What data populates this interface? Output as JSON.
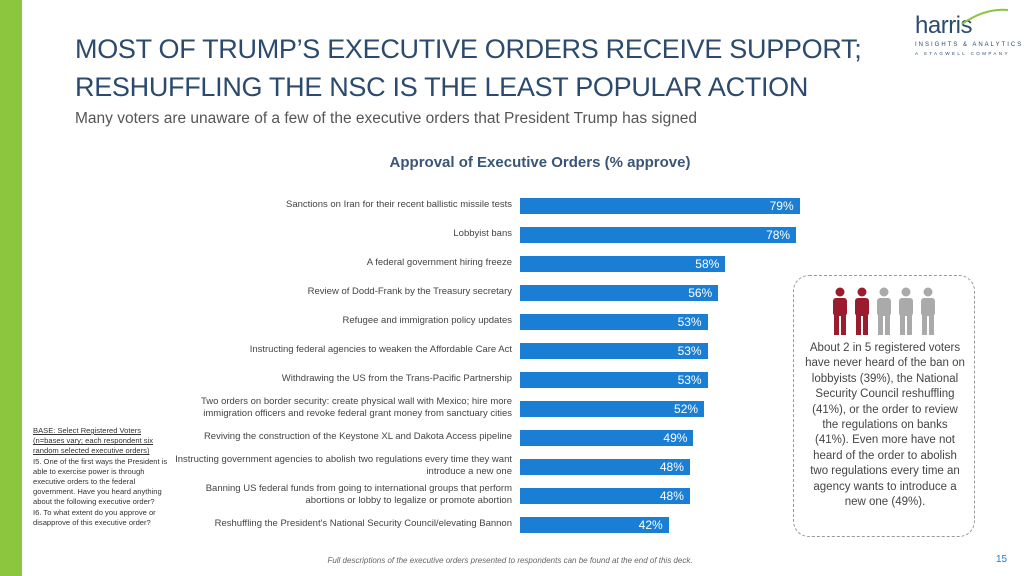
{
  "header": {
    "title": [
      "MOST OF TRUMP’S EXECUTIVE ORDERS RECEIVE SUPPORT;",
      "RESHUFFLING THE NSC IS THE LEAST POPULAR ACTION"
    ],
    "subtitle": "Many voters are unaware of a few of the executive orders that President Trump has signed"
  },
  "logo": {
    "name": "harris",
    "tagline": "INSIGHTS & ANALYTICS",
    "company": "A STAGWELL COMPANY"
  },
  "chart_data": {
    "type": "hbar",
    "title": "Approval of Executive Orders (% approve)",
    "color": "#1a7fd4",
    "categories": [
      "Sanctions on Iran for their recent ballistic missile tests",
      "Lobbyist bans",
      "A federal government hiring freeze",
      "Review of Dodd-Frank by the Treasury secretary",
      "Refugee and immigration policy updates",
      "Instructing federal agencies to weaken the Affordable Care Act",
      "Withdrawing the US from the Trans-Pacific Partnership",
      "Two orders on border security: create physical wall with Mexico; hire more immigration officers and revoke federal grant money from sanctuary cities",
      "Reviving the construction of the Keystone XL and Dakota Access pipeline",
      "Instructing government agencies to abolish two regulations every time they want introduce a new one",
      "Banning US federal funds from going to international groups that perform abortions or lobby to legalize or promote abortion",
      "Reshuffling the President's National Security Council/elevating Bannon"
    ],
    "values": [
      79,
      78,
      58,
      56,
      53,
      53,
      53,
      52,
      49,
      48,
      48,
      42
    ],
    "value_labels": [
      "79%",
      "78%",
      "58%",
      "56%",
      "53%",
      "53%",
      "53%",
      "52%",
      "49%",
      "48%",
      "48%",
      "42%"
    ]
  },
  "callout": "About 2 in 5 registered voters have never heard of the ban on lobbyists (39%), the National Security Council reshuffling (41%), or the order to review the regulations on banks (41%). Even more have not heard of the order to abolish two regulations every time an agency wants to introduce a new one (49%).",
  "footnote": {
    "base": "BASE: Select Registered Voters (n=bases vary; each respondent six random selected executive orders)",
    "questions": [
      "I5.  One of the first ways the President is able to exercise power is through executive orders to the federal government. Have you heard anything about the following executive order?",
      "I6.  To what extent do you approve or disapprove of this executive order?"
    ]
  },
  "footer": "Full descriptions of the executive orders presented to respondents can be found at the end of this deck.",
  "page_number": "15"
}
